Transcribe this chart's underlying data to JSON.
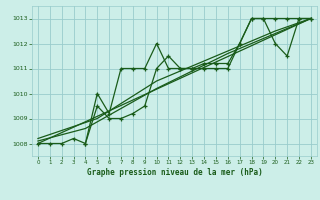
{
  "title": "Graphe pression niveau de la mer (hPa)",
  "bg_color": "#cceee8",
  "grid_color": "#99cccc",
  "line_color": "#1a5c1a",
  "text_color": "#1a5c1a",
  "xmin": -0.5,
  "xmax": 23.5,
  "ymin": 1007.5,
  "ymax": 1013.5,
  "yticks": [
    1008,
    1009,
    1010,
    1011,
    1012,
    1013
  ],
  "xticks": [
    0,
    1,
    2,
    3,
    4,
    5,
    6,
    7,
    8,
    9,
    10,
    11,
    12,
    13,
    14,
    15,
    16,
    17,
    18,
    19,
    20,
    21,
    22,
    23
  ],
  "main_series": [
    [
      0,
      1008.0
    ],
    [
      1,
      1008.0
    ],
    [
      2,
      1008.0
    ],
    [
      3,
      1008.2
    ],
    [
      4,
      1008.0
    ],
    [
      5,
      1010.0
    ],
    [
      6,
      1009.2
    ],
    [
      7,
      1011.0
    ],
    [
      8,
      1011.0
    ],
    [
      9,
      1011.0
    ],
    [
      10,
      1012.0
    ],
    [
      11,
      1011.0
    ],
    [
      12,
      1011.0
    ],
    [
      13,
      1011.0
    ],
    [
      14,
      1011.0
    ],
    [
      15,
      1011.0
    ],
    [
      16,
      1011.0
    ],
    [
      17,
      1012.0
    ],
    [
      18,
      1013.0
    ],
    [
      19,
      1013.0
    ],
    [
      20,
      1013.0
    ],
    [
      21,
      1013.0
    ],
    [
      22,
      1013.0
    ],
    [
      23,
      1013.0
    ]
  ],
  "trend_line1": [
    [
      0,
      1008.0
    ],
    [
      23,
      1013.0
    ]
  ],
  "trend_line2": [
    [
      0,
      1008.1
    ],
    [
      4,
      1008.6
    ],
    [
      10,
      1010.2
    ],
    [
      16,
      1011.6
    ],
    [
      23,
      1013.0
    ]
  ],
  "trend_line3": [
    [
      0,
      1008.2
    ],
    [
      5,
      1009.0
    ],
    [
      10,
      1010.5
    ],
    [
      15,
      1011.5
    ],
    [
      20,
      1012.5
    ],
    [
      23,
      1013.0
    ]
  ],
  "second_series": [
    [
      4,
      1008.0
    ],
    [
      5,
      1009.5
    ],
    [
      6,
      1009.0
    ],
    [
      7,
      1009.0
    ],
    [
      8,
      1009.2
    ],
    [
      9,
      1009.5
    ],
    [
      10,
      1011.0
    ],
    [
      11,
      1011.5
    ],
    [
      12,
      1011.0
    ],
    [
      13,
      1011.0
    ],
    [
      14,
      1011.2
    ],
    [
      15,
      1011.2
    ],
    [
      16,
      1011.2
    ],
    [
      17,
      1012.0
    ],
    [
      18,
      1013.0
    ],
    [
      19,
      1013.0
    ],
    [
      20,
      1012.0
    ],
    [
      21,
      1011.5
    ],
    [
      22,
      1013.0
    ],
    [
      23,
      1013.0
    ]
  ]
}
